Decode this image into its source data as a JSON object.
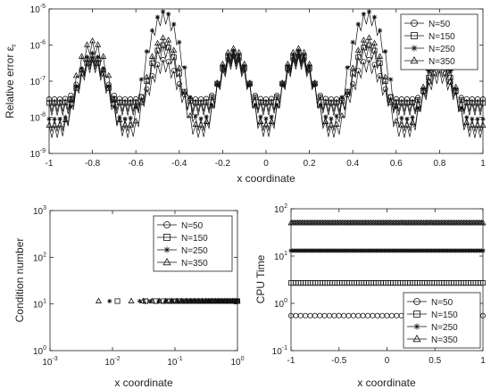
{
  "chart_data": [
    {
      "type": "line",
      "xlabel": "x coordinate",
      "ylabel": "Relative error ε_r",
      "ylabel_main": "Relative error ",
      "ylabel_sym": "ε",
      "ylabel_sub": "r",
      "xlim": [
        -1,
        1
      ],
      "ylim_exp": [
        -9,
        -5
      ],
      "yscale": "log",
      "xticks": [
        "-1",
        "-0.8",
        "-0.6",
        "-0.4",
        "-0.2",
        "0",
        "0.2",
        "0.4",
        "0.6",
        "0.8",
        "1"
      ],
      "yticks": [
        {
          "base": "10",
          "exp": "-9"
        },
        {
          "base": "10",
          "exp": "-8"
        },
        {
          "base": "10",
          "exp": "-7"
        },
        {
          "base": "10",
          "exp": "-6"
        },
        {
          "base": "10",
          "exp": "-5"
        }
      ],
      "legend_position": "top-right",
      "peaks_x": [
        -0.8,
        -0.47,
        -0.15,
        0.15,
        0.47,
        0.8
      ],
      "series": [
        {
          "name": "N=50",
          "marker": "circle",
          "baseline": 3.2e-08,
          "peak_values": [
            5e-07,
            4e-07,
            5e-07,
            5e-07,
            4e-07,
            2e-07
          ]
        },
        {
          "name": "N=150",
          "marker": "square",
          "baseline": 2.5e-08,
          "peak_values": [
            4e-07,
            1e-06,
            6e-07,
            6e-07,
            1e-06,
            3e-07
          ]
        },
        {
          "name": "N=250",
          "marker": "star",
          "baseline": 9e-09,
          "peak_values": [
            6e-07,
            8.5e-06,
            7e-07,
            7e-07,
            8.5e-06,
            5e-07
          ]
        },
        {
          "name": "N=350",
          "marker": "triangle",
          "baseline": 6e-09,
          "peak_values": [
            1.3e-06,
            1.6e-06,
            8e-07,
            8e-07,
            1.6e-06,
            6e-07
          ]
        }
      ]
    },
    {
      "type": "scatter",
      "xlabel": "x coordinate",
      "ylabel": "Condition number",
      "xscale": "log",
      "yscale": "log",
      "xlim_exp": [
        -3,
        0
      ],
      "ylim_exp": [
        0,
        3
      ],
      "xticks": [
        {
          "base": "10",
          "exp": "-3"
        },
        {
          "base": "10",
          "exp": "-2"
        },
        {
          "base": "10",
          "exp": "-1"
        },
        {
          "base": "10",
          "exp": "0"
        }
      ],
      "yticks": [
        {
          "base": "10",
          "exp": "0"
        },
        {
          "base": "10",
          "exp": "1"
        },
        {
          "base": "10",
          "exp": "2"
        },
        {
          "base": "10",
          "exp": "3"
        }
      ],
      "legend_position": "top-right",
      "series": [
        {
          "name": "N=50",
          "marker": "circle",
          "value": 11.5
        },
        {
          "name": "N=150",
          "marker": "square",
          "value": 11.5
        },
        {
          "name": "N=250",
          "marker": "star",
          "value": 11.5
        },
        {
          "name": "N=350",
          "marker": "triangle",
          "value": 11.5
        }
      ]
    },
    {
      "type": "scatter",
      "xlabel": "x coordinate",
      "ylabel": "CPU Time",
      "yscale": "log",
      "xlim": [
        -1,
        1
      ],
      "ylim_exp": [
        -1,
        2
      ],
      "xticks": [
        "-1",
        "-0.5",
        "0",
        "0.5",
        "1"
      ],
      "yticks": [
        {
          "base": "10",
          "exp": "-1"
        },
        {
          "base": "10",
          "exp": "0"
        },
        {
          "base": "10",
          "exp": "1"
        },
        {
          "base": "10",
          "exp": "2"
        }
      ],
      "legend_position": "bottom-right",
      "series": [
        {
          "name": "N=50",
          "marker": "circle",
          "value": 0.55
        },
        {
          "name": "N=150",
          "marker": "square",
          "value": 2.7
        },
        {
          "name": "N=250",
          "marker": "star",
          "value": 13
        },
        {
          "name": "N=350",
          "marker": "triangle",
          "value": 50
        }
      ]
    }
  ]
}
